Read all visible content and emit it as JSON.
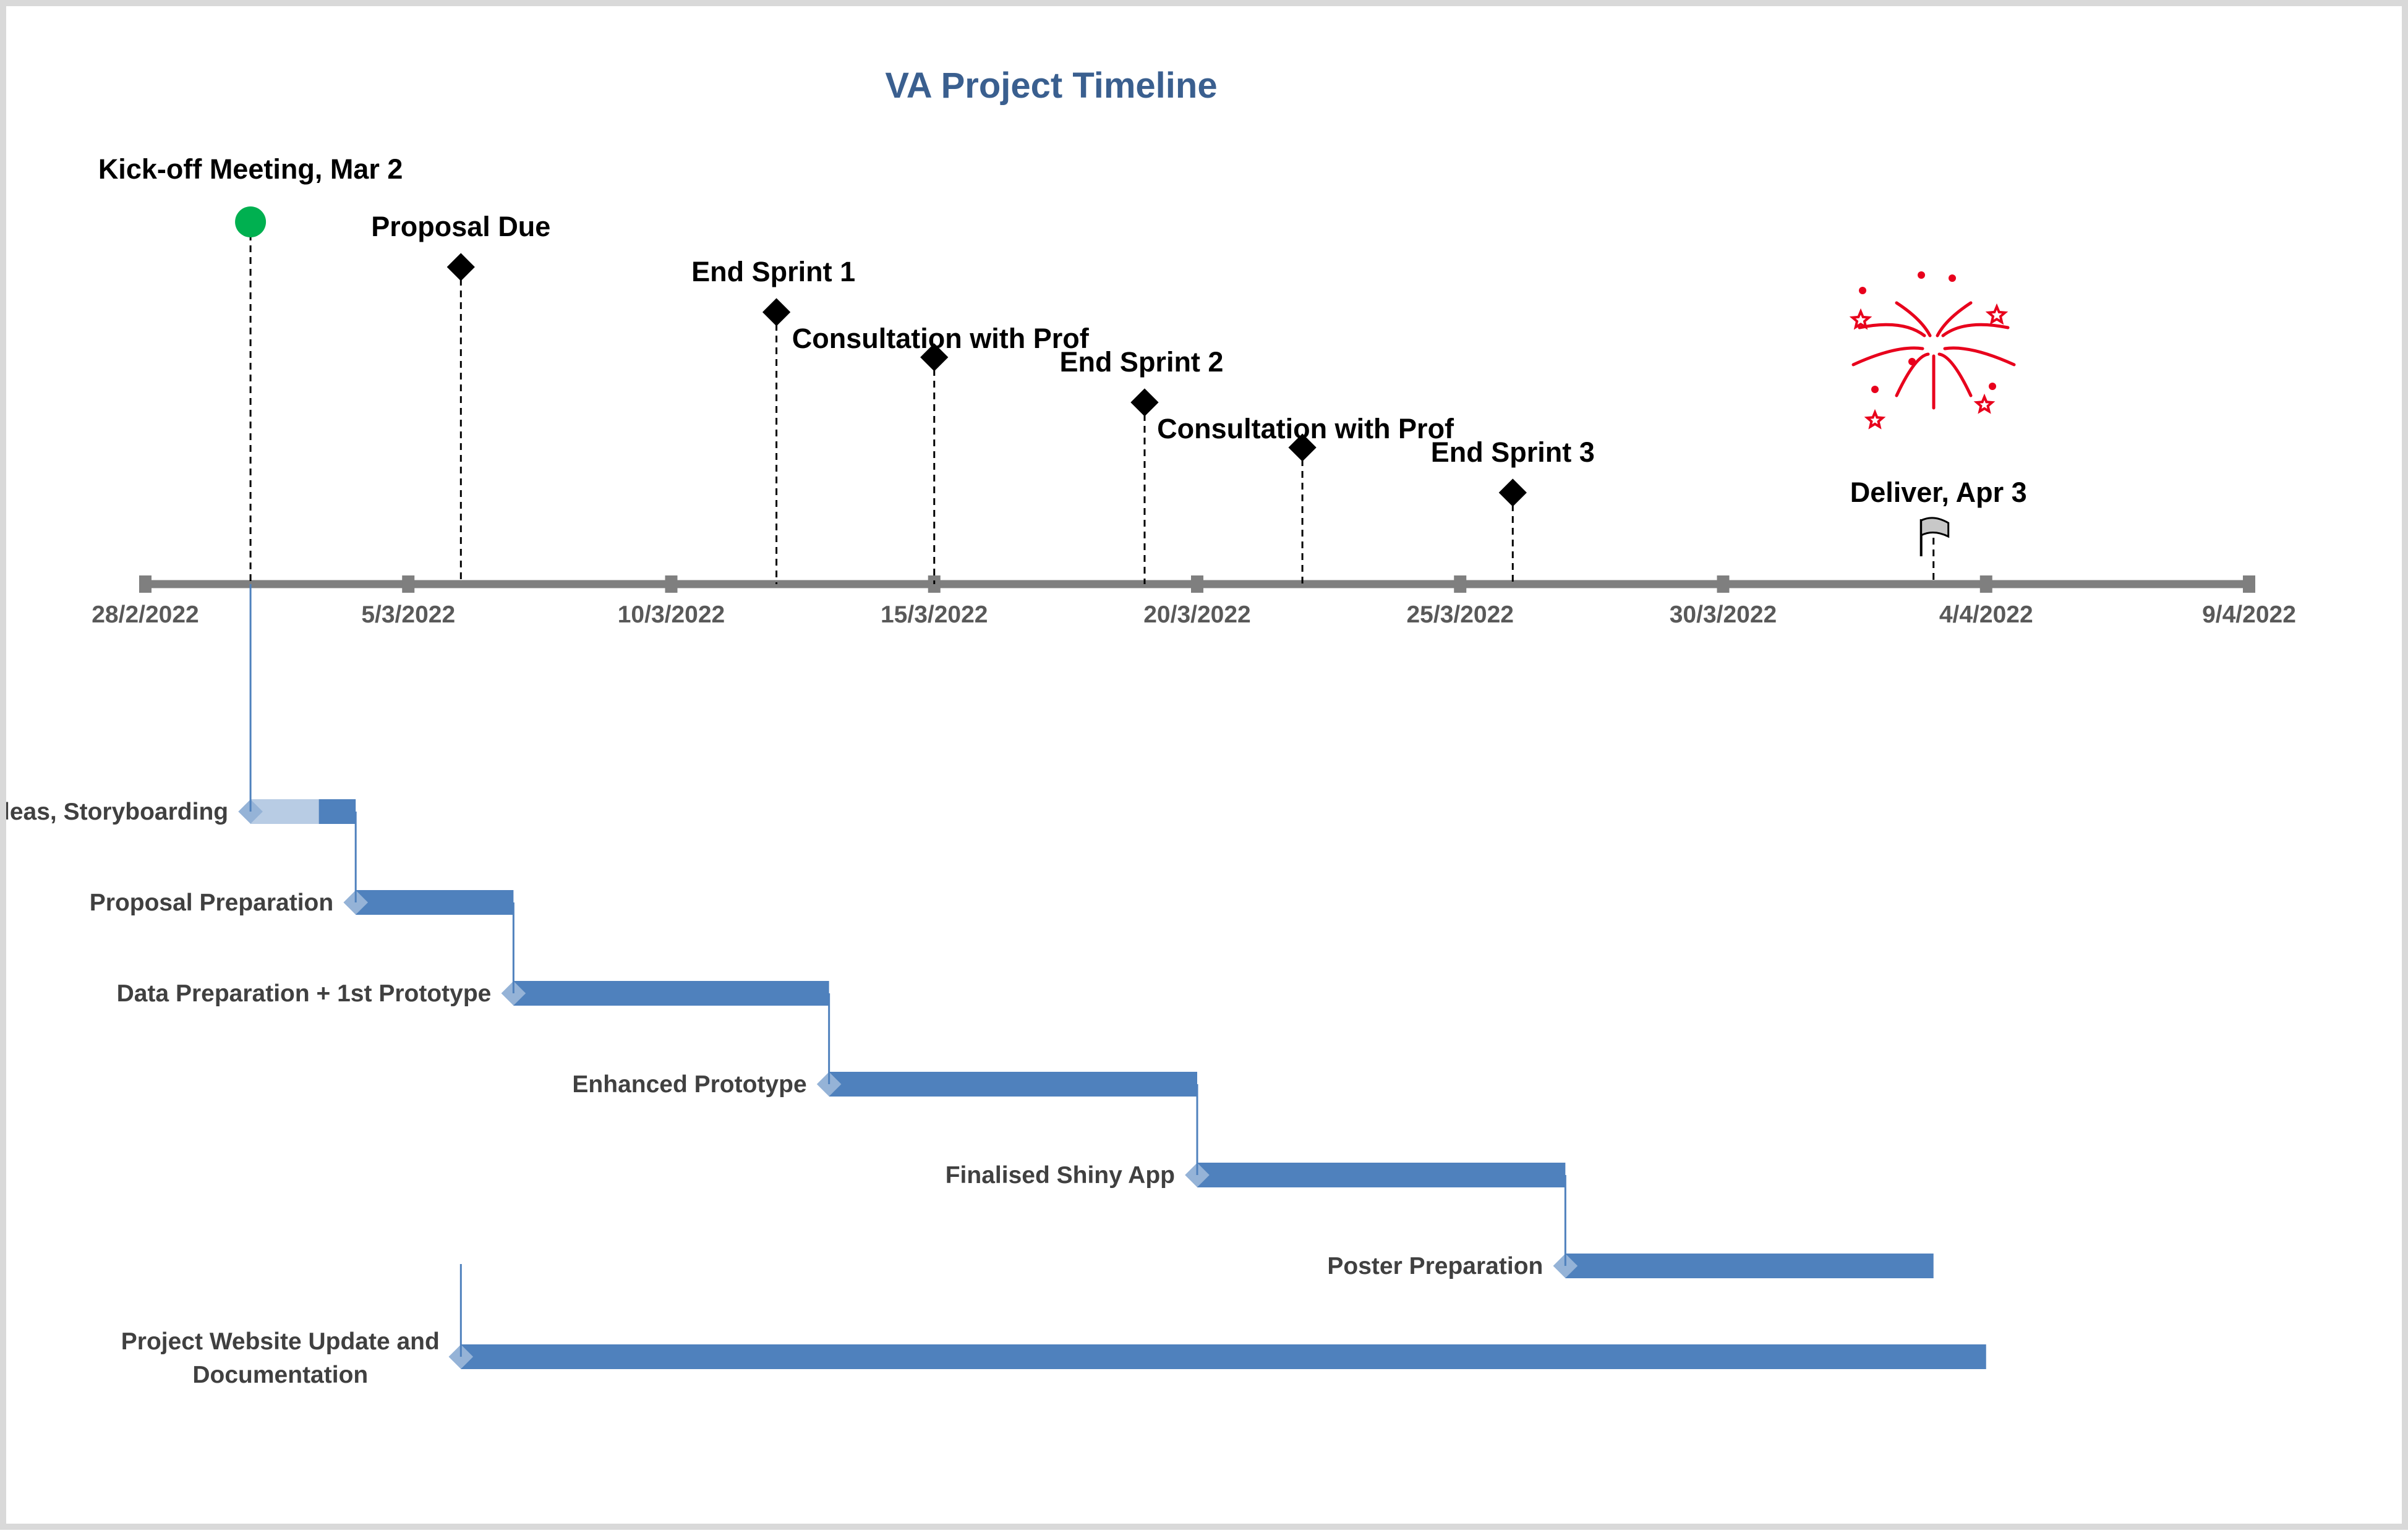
{
  "colors": {
    "bar": "#4f81bd",
    "bar_light": "#b8cce4",
    "diamond_light": "#95b3d7",
    "axis": "#7f7f7f",
    "title": "#3a5f8f",
    "kickoff": "#00b050",
    "milestone": "#000000",
    "firework": "#e8001c"
  },
  "chart_data": {
    "type": "timeline",
    "title": "VA Project Timeline",
    "x_range": [
      "2022-02-28",
      "2022-04-09"
    ],
    "ticks": [
      {
        "date": "2022-02-28",
        "label": "28/2/2022"
      },
      {
        "date": "2022-03-05",
        "label": "5/3/2022"
      },
      {
        "date": "2022-03-10",
        "label": "10/3/2022"
      },
      {
        "date": "2022-03-15",
        "label": "15/3/2022"
      },
      {
        "date": "2022-03-20",
        "label": "20/3/2022"
      },
      {
        "date": "2022-03-25",
        "label": "25/3/2022"
      },
      {
        "date": "2022-03-30",
        "label": "30/3/2022"
      },
      {
        "date": "2022-04-04",
        "label": "4/4/2022"
      },
      {
        "date": "2022-04-09",
        "label": "9/4/2022"
      }
    ],
    "milestones": [
      {
        "label": "Kick-off Meeting, Mar 2",
        "date": "2022-03-02",
        "marker": "circle",
        "level": 8
      },
      {
        "label": "Proposal Due",
        "date": "2022-03-06",
        "marker": "diamond",
        "level": 7
      },
      {
        "label": "End Sprint 1",
        "date": "2022-03-12",
        "marker": "diamond",
        "level": 6
      },
      {
        "label": "Consultation with Prof",
        "date": "2022-03-15",
        "marker": "diamond",
        "level": 5
      },
      {
        "label": "End Sprint 2",
        "date": "2022-03-19",
        "marker": "diamond",
        "level": 4
      },
      {
        "label": "Consultation with Prof",
        "date": "2022-03-22",
        "marker": "diamond",
        "level": 3
      },
      {
        "label": "End Sprint 3",
        "date": "2022-03-26",
        "marker": "diamond",
        "level": 2
      },
      {
        "label": "Deliver, Apr 3",
        "date": "2022-04-03",
        "marker": "flag",
        "level": 1
      }
    ],
    "tasks": [
      {
        "label": "Project Ideas, Storyboarding",
        "start": "2022-03-02",
        "end": "2022-03-04"
      },
      {
        "label": "Proposal Preparation",
        "start": "2022-03-04",
        "end": "2022-03-07"
      },
      {
        "label": "Data Preparation + 1st Prototype",
        "start": "2022-03-07",
        "end": "2022-03-13"
      },
      {
        "label": "Enhanced Prototype",
        "start": "2022-03-13",
        "end": "2022-03-20"
      },
      {
        "label": "Finalised Shiny App",
        "start": "2022-03-20",
        "end": "2022-03-27"
      },
      {
        "label": "Poster Preparation",
        "start": "2022-03-27",
        "end": "2022-04-03"
      },
      {
        "label": "Project Website Update and Documentation",
        "label_lines": [
          "Project Website Update and",
          "Documentation"
        ],
        "start": "2022-03-06",
        "end": "2022-04-04"
      }
    ]
  }
}
